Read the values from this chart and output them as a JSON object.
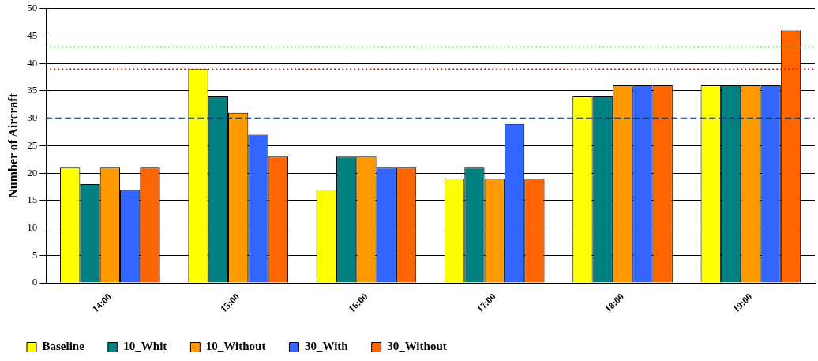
{
  "chart_data": {
    "type": "bar",
    "ylabel": "Number of Aircraft",
    "categories": [
      "14:00",
      "15:00",
      "16:00",
      "17:00",
      "18:00",
      "19:00"
    ],
    "series": [
      {
        "name": "Baseline",
        "color": "#ffff00",
        "values": [
          21,
          39,
          17,
          19,
          34,
          36
        ]
      },
      {
        "name": "10_Whit",
        "color": "#008080",
        "values": [
          18,
          34,
          23,
          21,
          34,
          36
        ]
      },
      {
        "name": "10_Without",
        "color": "#ff9900",
        "values": [
          21,
          31,
          23,
          19,
          36,
          36
        ]
      },
      {
        "name": "30_With",
        "color": "#3366ff",
        "values": [
          17,
          27,
          21,
          29,
          36,
          36
        ]
      },
      {
        "name": "30_Without",
        "color": "#ff6600",
        "values": [
          21,
          23,
          21,
          19,
          36,
          46
        ]
      }
    ],
    "ylim": [
      0,
      50
    ],
    "yticks": [
      0,
      5,
      10,
      15,
      20,
      25,
      30,
      35,
      40,
      45,
      50
    ],
    "grid": "y",
    "legend": "bottom left",
    "ref_lines": [
      {
        "axis": "y",
        "value": 43,
        "color": "#00cc00",
        "line_style": "dotted"
      },
      {
        "axis": "y",
        "value": 39,
        "color": "#ff0000",
        "line_style": "dotted"
      },
      {
        "axis": "y",
        "value": 30,
        "color": "#003366",
        "line_style": "dashed"
      }
    ]
  }
}
